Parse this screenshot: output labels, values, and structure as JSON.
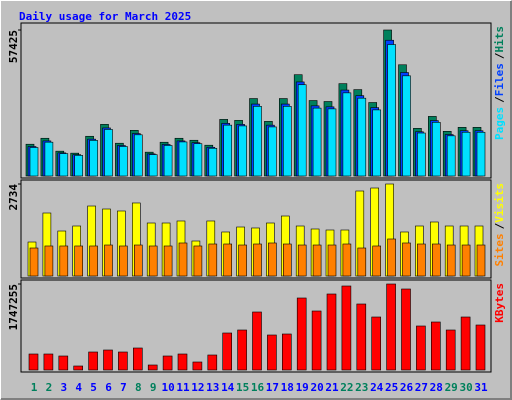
{
  "chart_data": {
    "type": "bar",
    "title": "Daily usage for March 2025",
    "categories": [
      "1",
      "2",
      "3",
      "4",
      "5",
      "6",
      "7",
      "8",
      "9",
      "10",
      "11",
      "12",
      "13",
      "14",
      "15",
      "16",
      "17",
      "18",
      "19",
      "20",
      "21",
      "22",
      "23",
      "24",
      "25",
      "26",
      "27",
      "28",
      "29",
      "30",
      "31"
    ],
    "category_colors": [
      "#00805c",
      "#00805c",
      "#0000ff",
      "#0000ff",
      "#0000ff",
      "#0000ff",
      "#0000ff",
      "#00805c",
      "#00805c",
      "#0000ff",
      "#0000ff",
      "#0000ff",
      "#0000ff",
      "#0000ff",
      "#00805c",
      "#00805c",
      "#0000ff",
      "#0000ff",
      "#0000ff",
      "#0000ff",
      "#0000ff",
      "#00805c",
      "#00805c",
      "#0000ff",
      "#0000ff",
      "#0000ff",
      "#0000ff",
      "#0000ff",
      "#00805c",
      "#00805c",
      "#0000ff"
    ],
    "separator": "/",
    "panels": [
      {
        "ylim": [
          0,
          57425
        ],
        "yticks": [
          57425
        ],
        "series": [
          {
            "name": "Hits",
            "color": "#00805c",
            "values": [
              12500,
              14843,
              9766,
              8984,
              15625,
              20313,
              12891,
              17969,
              9375,
              13281,
              14843,
              14063,
              12109,
              22266,
              21875,
              30469,
              21484,
              30469,
              39844,
              29688,
              29297,
              36328,
              33984,
              28906,
              57425,
              43750,
              18750,
              23438,
              17578,
              19141,
              19141
            ]
          },
          {
            "name": "Files",
            "color": "#0040ff",
            "values": [
              11600,
              13800,
              9100,
              8400,
              14500,
              18900,
              12000,
              16700,
              8700,
              12400,
              13800,
              13100,
              11300,
              20700,
              20300,
              28300,
              20000,
              28300,
              37000,
              27600,
              27200,
              33800,
              31600,
              26900,
              53400,
              40700,
              17400,
              21800,
              16300,
              17800,
              17800
            ]
          },
          {
            "name": "Pages",
            "color": "#00e0ff",
            "values": [
              11200,
              13300,
              8800,
              8100,
              14000,
              18300,
              11600,
              16200,
              8400,
              12000,
              13400,
              12700,
              10900,
              20000,
              19700,
              27400,
              19300,
              27400,
              35900,
              26700,
              26400,
              32700,
              30600,
              26000,
              51700,
              39400,
              16900,
              21100,
              15800,
              17200,
              17200
            ]
          }
        ]
      },
      {
        "ylim": [
          0,
          2734
        ],
        "yticks": [
          2734
        ],
        "series": [
          {
            "name": "Visits",
            "color": "#ffff00",
            "values": [
              1010,
              1872,
              1337,
              1486,
              2080,
              1991,
              1932,
              2170,
              1575,
              1575,
              1635,
              1040,
              1635,
              1308,
              1456,
              1427,
              1575,
              1783,
              1486,
              1397,
              1367,
              1367,
              2526,
              2615,
              2734,
              1308,
              1486,
              1605,
              1486,
              1486,
              1486
            ]
          },
          {
            "name": "Sites",
            "color": "#ff8000",
            "values": [
              832,
              892,
              892,
              892,
              892,
              921,
              892,
              921,
              892,
              892,
              981,
              892,
              951,
              951,
              921,
              951,
              981,
              951,
              921,
              921,
              921,
              951,
              832,
              892,
              1100,
              981,
              951,
              951,
              921,
              921,
              921
            ]
          }
        ]
      },
      {
        "ylim": [
          0,
          1747255
        ],
        "yticks": [
          1747255
        ],
        "series": [
          {
            "name": "KBytes",
            "color": "#ff0000",
            "values": [
              325072,
              325072,
              284438,
              81268,
              365706,
              406340,
              365706,
              446974,
              101585,
              284438,
              325072,
              162536,
              304755,
              751729,
              812680,
              1178386,
              711095,
              731412,
              1462824,
              1198703,
              1544092,
              1706628,
              1340922,
              1076801,
              1747255,
              1645677,
              893948,
              975216,
              812680,
              1076801,
              914265
            ]
          }
        ]
      }
    ]
  }
}
